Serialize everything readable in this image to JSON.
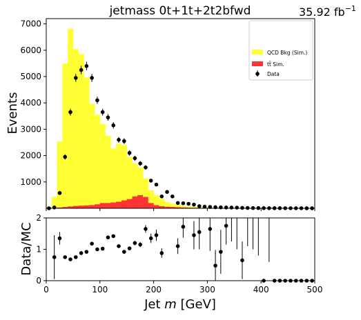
{
  "chart_data": [
    {
      "type": "bar",
      "title": "jetmass  0t+1t+2t2bfwd",
      "lumi": "35.92 fb",
      "lumi_sup": "−1",
      "ylabel": "Events",
      "xlim": [
        0,
        500
      ],
      "ylim": [
        0,
        7200
      ],
      "yticks": [
        "1000",
        "2000",
        "3000",
        "4000",
        "5000",
        "6000",
        "7000"
      ],
      "bin_width": 10,
      "x": [
        5,
        15,
        25,
        35,
        45,
        55,
        65,
        75,
        85,
        95,
        105,
        115,
        125,
        135,
        145,
        155,
        165,
        175,
        185,
        195,
        205,
        215,
        225,
        235,
        245,
        255,
        265,
        275,
        285,
        295,
        305,
        315,
        325,
        335,
        345,
        355,
        365,
        375,
        385,
        395,
        405,
        415,
        425,
        435,
        445,
        455,
        465,
        475,
        485,
        495
      ],
      "legend_position": "top-right",
      "legend": [
        "QCD Bkg (Sim.)",
        "tt̄ Sim.",
        "Data"
      ],
      "series": [
        {
          "name": "QCD Bkg (Sim.)",
          "color": "#ffff33",
          "values": [
            40,
            420,
            2500,
            5450,
            6750,
            5950,
            5750,
            4850,
            3850,
            3400,
            3000,
            2550,
            2050,
            2200,
            2100,
            1600,
            1250,
            1050,
            700,
            480,
            380,
            280,
            180,
            120,
            90,
            60,
            50,
            35,
            25,
            20,
            15,
            12,
            10,
            8,
            6,
            5,
            4,
            3,
            3,
            2,
            2,
            2,
            1,
            1,
            1,
            1,
            1,
            0,
            0,
            0
          ]
        },
        {
          "name": "tt̄ Sim.",
          "color": "#ff3333",
          "values": [
            0,
            10,
            30,
            50,
            70,
            90,
            100,
            110,
            120,
            150,
            200,
            200,
            220,
            250,
            300,
            350,
            450,
            500,
            430,
            200,
            120,
            80,
            60,
            50,
            40,
            30,
            25,
            20,
            15,
            12,
            10,
            8,
            6,
            5,
            4,
            3,
            3,
            2,
            2,
            2,
            1,
            1,
            1,
            1,
            1,
            0,
            0,
            0,
            0,
            0
          ]
        },
        {
          "name": "Data",
          "color": "#000000",
          "values": [
            0,
            30,
            580,
            1950,
            3650,
            4950,
            5250,
            5400,
            4950,
            4100,
            3650,
            3450,
            3150,
            2600,
            2550,
            2100,
            1900,
            1700,
            1550,
            1050,
            900,
            450,
            620,
            450,
            200,
            190,
            170,
            140,
            80,
            60,
            50,
            40,
            35,
            30,
            28,
            25,
            15,
            12,
            10,
            8,
            6,
            5,
            4,
            4,
            3,
            3,
            2,
            2,
            1,
            1
          ],
          "errors": [
            0,
            20,
            60,
            100,
            130,
            150,
            160,
            160,
            150,
            140,
            130,
            125,
            120,
            110,
            110,
            100,
            95,
            90,
            85,
            70,
            65,
            45,
            55,
            45,
            30,
            30,
            28,
            25,
            20,
            18,
            15,
            13,
            12,
            11,
            10,
            10,
            8,
            7,
            6,
            6,
            5,
            4,
            4,
            4,
            3,
            3,
            3,
            3,
            2,
            2
          ]
        }
      ]
    },
    {
      "type": "scatter",
      "ylabel": "Data/MC",
      "xlabel_prefix": "Jet ",
      "xlabel_var": "m",
      "xlabel_suffix": " [GeV]",
      "xlim": [
        0,
        500
      ],
      "ylim": [
        0,
        2
      ],
      "xticks": [
        "0",
        "100",
        "200",
        "300",
        "400",
        "500"
      ],
      "yticks": [
        "0",
        "1",
        "2"
      ],
      "x": [
        15,
        25,
        35,
        45,
        55,
        65,
        75,
        85,
        95,
        105,
        115,
        125,
        135,
        145,
        155,
        165,
        175,
        185,
        195,
        205,
        215,
        245,
        255,
        275,
        285,
        305,
        315,
        325,
        335,
        365,
        405,
        425,
        435,
        445,
        455,
        465,
        475,
        485,
        495
      ],
      "values": [
        0.75,
        1.35,
        0.75,
        0.68,
        0.75,
        0.88,
        0.92,
        1.18,
        1.0,
        1.02,
        1.38,
        1.42,
        1.1,
        0.92,
        1.03,
        1.2,
        1.15,
        1.65,
        1.35,
        1.45,
        0.88,
        1.1,
        1.72,
        1.45,
        1.55,
        1.65,
        0.48,
        0.92,
        1.75,
        0.65,
        0.0,
        0.0,
        0.0,
        0.0,
        0.0,
        0.0,
        0.0,
        0.0,
        0.0
      ],
      "errors": [
        0.7,
        0.2,
        0.05,
        0.04,
        0.03,
        0.03,
        0.03,
        0.03,
        0.03,
        0.04,
        0.05,
        0.05,
        0.05,
        0.05,
        0.06,
        0.07,
        0.08,
        0.12,
        0.15,
        0.18,
        0.15,
        0.25,
        0.35,
        0.45,
        0.55,
        0.7,
        0.5,
        0.7,
        0.6,
        0.6,
        0,
        0,
        0,
        0,
        0,
        0,
        0,
        0,
        0
      ],
      "empty_bins": [
        [
          345,
          1.25
        ],
        [
          355,
          1.0
        ],
        [
          375,
          1.1
        ],
        [
          385,
          1.0
        ],
        [
          395,
          0.8
        ],
        [
          415,
          0.6
        ]
      ]
    }
  ]
}
